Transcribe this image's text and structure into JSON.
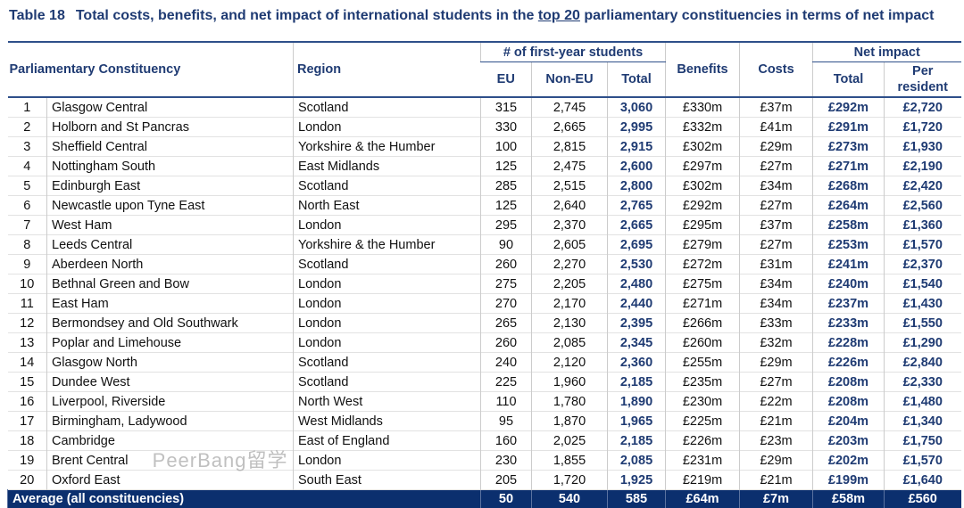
{
  "title": {
    "number": "Table 18",
    "pre": "Total costs, benefits, and net impact of international students in the ",
    "link": "top 20",
    "post": " parliamentary constituencies in terms of net impact"
  },
  "headers": {
    "constituency": "Parliamentary Constituency",
    "region": "Region",
    "students_group": "# of first-year students",
    "eu": "EU",
    "non_eu": "Non-EU",
    "total": "Total",
    "benefits": "Benefits",
    "costs": "Costs",
    "net_group": "Net impact",
    "net_total": "Total",
    "per_resident": "Per resident"
  },
  "rows": [
    [
      "1",
      "Glasgow Central",
      "Scotland",
      "315",
      "2,745",
      "3,060",
      "£330m",
      "£37m",
      "£292m",
      "£2,720"
    ],
    [
      "2",
      "Holborn and St Pancras",
      "London",
      "330",
      "2,665",
      "2,995",
      "£332m",
      "£41m",
      "£291m",
      "£1,720"
    ],
    [
      "3",
      "Sheffield Central",
      "Yorkshire & the Humber",
      "100",
      "2,815",
      "2,915",
      "£302m",
      "£29m",
      "£273m",
      "£1,930"
    ],
    [
      "4",
      "Nottingham South",
      "East Midlands",
      "125",
      "2,475",
      "2,600",
      "£297m",
      "£27m",
      "£271m",
      "£2,190"
    ],
    [
      "5",
      "Edinburgh East",
      "Scotland",
      "285",
      "2,515",
      "2,800",
      "£302m",
      "£34m",
      "£268m",
      "£2,420"
    ],
    [
      "6",
      "Newcastle upon Tyne East",
      "North East",
      "125",
      "2,640",
      "2,765",
      "£292m",
      "£27m",
      "£264m",
      "£2,560"
    ],
    [
      "7",
      "West Ham",
      "London",
      "295",
      "2,370",
      "2,665",
      "£295m",
      "£37m",
      "£258m",
      "£1,360"
    ],
    [
      "8",
      "Leeds Central",
      "Yorkshire & the Humber",
      "90",
      "2,605",
      "2,695",
      "£279m",
      "£27m",
      "£253m",
      "£1,570"
    ],
    [
      "9",
      "Aberdeen North",
      "Scotland",
      "260",
      "2,270",
      "2,530",
      "£272m",
      "£31m",
      "£241m",
      "£2,370"
    ],
    [
      "10",
      "Bethnal Green and Bow",
      "London",
      "275",
      "2,205",
      "2,480",
      "£275m",
      "£34m",
      "£240m",
      "£1,540"
    ],
    [
      "11",
      "East Ham",
      "London",
      "270",
      "2,170",
      "2,440",
      "£271m",
      "£34m",
      "£237m",
      "£1,430"
    ],
    [
      "12",
      "Bermondsey and Old Southwark",
      "London",
      "265",
      "2,130",
      "2,395",
      "£266m",
      "£33m",
      "£233m",
      "£1,550"
    ],
    [
      "13",
      "Poplar and Limehouse",
      "London",
      "260",
      "2,085",
      "2,345",
      "£260m",
      "£32m",
      "£228m",
      "£1,290"
    ],
    [
      "14",
      "Glasgow North",
      "Scotland",
      "240",
      "2,120",
      "2,360",
      "£255m",
      "£29m",
      "£226m",
      "£2,840"
    ],
    [
      "15",
      "Dundee West",
      "Scotland",
      "225",
      "1,960",
      "2,185",
      "£235m",
      "£27m",
      "£208m",
      "£2,330"
    ],
    [
      "16",
      "Liverpool, Riverside",
      "North West",
      "110",
      "1,780",
      "1,890",
      "£230m",
      "£22m",
      "£208m",
      "£1,480"
    ],
    [
      "17",
      "Birmingham, Ladywood",
      "West Midlands",
      "95",
      "1,870",
      "1,965",
      "£225m",
      "£21m",
      "£204m",
      "£1,340"
    ],
    [
      "18",
      "Cambridge",
      "East of England",
      "160",
      "2,025",
      "2,185",
      "£226m",
      "£23m",
      "£203m",
      "£1,750"
    ],
    [
      "19",
      "Brent Central",
      "London",
      "230",
      "1,855",
      "2,085",
      "£231m",
      "£29m",
      "£202m",
      "£1,570"
    ],
    [
      "20",
      "Oxford East",
      "South East",
      "205",
      "1,720",
      "1,925",
      "£219m",
      "£21m",
      "£199m",
      "£1,640"
    ]
  ],
  "average": {
    "label": "Average (all constituencies)",
    "eu": "50",
    "non_eu": "540",
    "total": "585",
    "benefits": "£64m",
    "costs": "£7m",
    "net_total": "£58m",
    "per_resident": "£560"
  },
  "watermark": "PeerBang留学"
}
